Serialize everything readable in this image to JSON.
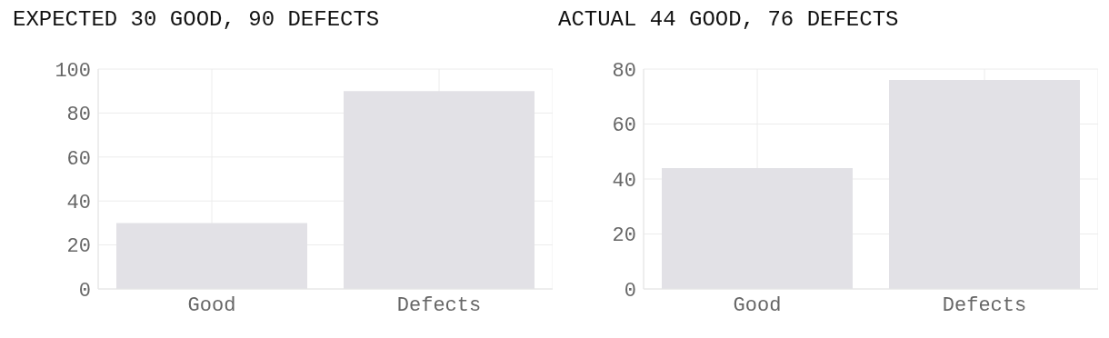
{
  "chart_data": [
    {
      "type": "bar",
      "title": "EXPECTED 30 GOOD, 90 DEFECTS",
      "categories": [
        "Good",
        "Defects"
      ],
      "values": [
        30,
        90
      ],
      "color": "#e2e1e6",
      "ylim": [
        0,
        100
      ],
      "yticks": [
        0,
        20,
        40,
        60,
        80,
        100
      ],
      "grid": true
    },
    {
      "type": "bar",
      "title": "ACTUAL 44 GOOD, 76 DEFECTS",
      "categories": [
        "Good",
        "Defects"
      ],
      "values": [
        44,
        76
      ],
      "color": "#e2e1e6",
      "ylim": [
        0,
        80
      ],
      "yticks": [
        0,
        20,
        40,
        60,
        80
      ],
      "grid": true
    }
  ]
}
